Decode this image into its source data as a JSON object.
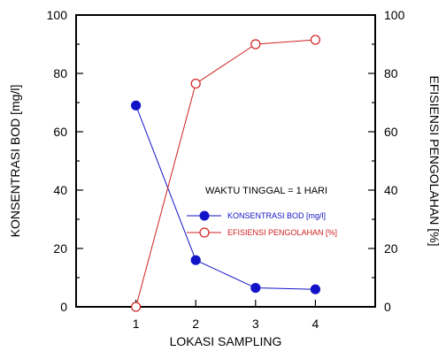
{
  "chart_data": {
    "type": "line",
    "x": [
      1,
      2,
      3,
      4
    ],
    "xlim": [
      0,
      5
    ],
    "x_ticks": [
      1,
      2,
      3,
      4
    ],
    "xlabel": "LOKASI SAMPLING",
    "ylabel": "KONSENTRASI BOD [mg/l]",
    "y2label": "EFISIENSI PENGOLAHAN [%]",
    "ylim": [
      0,
      100
    ],
    "y2lim": [
      0,
      100
    ],
    "y_ticks": [
      0,
      20,
      40,
      60,
      80,
      100
    ],
    "grid": false,
    "legend_position": "center-right",
    "annotation": "WAKTU TINGGAL = 1 HARI",
    "series": [
      {
        "name": "KONSENTRASI BOD [mg/l]",
        "axis": "left",
        "values": [
          69,
          16,
          6.5,
          6
        ],
        "color": "#1212c8",
        "marker": "filled-circle"
      },
      {
        "name": "EFISIENSI PENGOLAHAN [%]",
        "axis": "right",
        "values": [
          0,
          76.5,
          90,
          91.5
        ],
        "color": "#d02020",
        "marker": "open-circle"
      }
    ]
  }
}
